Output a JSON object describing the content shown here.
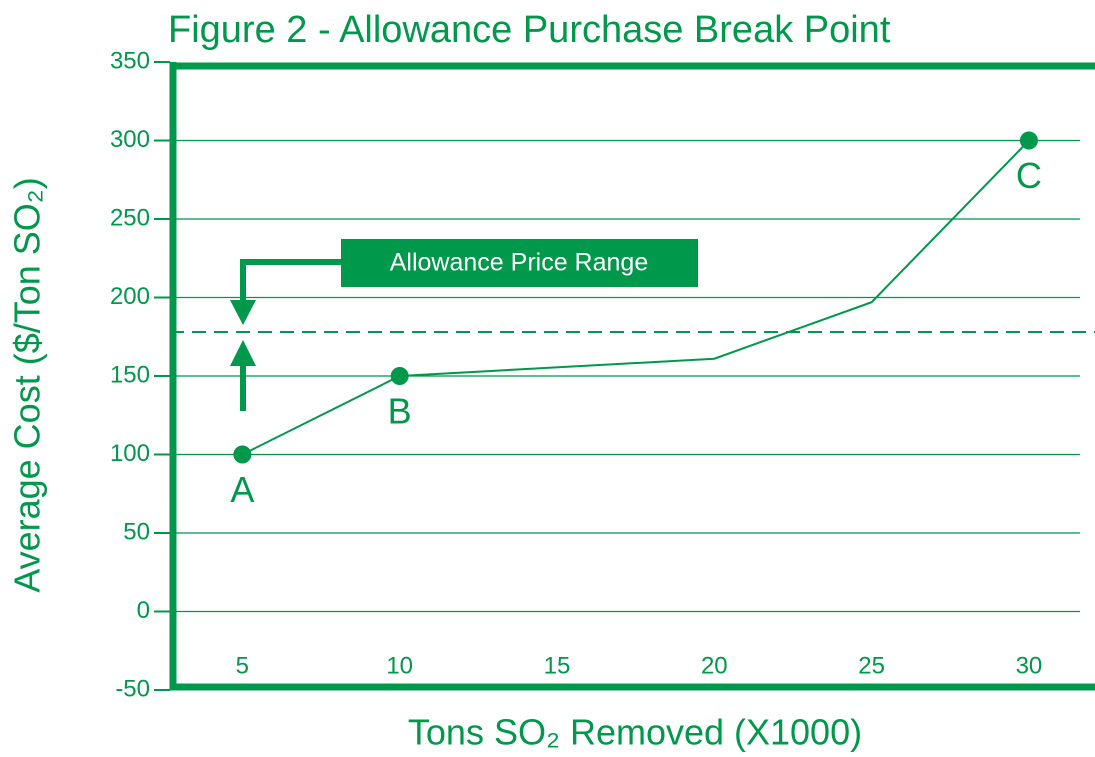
{
  "chart_data": {
    "type": "line",
    "title": "Figure 2 - Allowance Purchase Break Point",
    "xlabel": "Tons SO₂ Removed (X1000)",
    "ylabel": "Average Cost ($/Ton SO₂)",
    "x": [
      5,
      10,
      20,
      25,
      30
    ],
    "series": [
      {
        "name": "Average Cost",
        "color": "#00984a",
        "values": [
          100,
          150,
          161,
          197,
          300
        ]
      }
    ],
    "point_labels": [
      "A",
      "B",
      null,
      null,
      "C"
    ],
    "reference_line": 178,
    "annotation": "Allowance Price Range",
    "xlim": [
      2.7,
      32.1
    ],
    "ylim": [
      -50,
      350
    ],
    "xticks": [
      5,
      10,
      15,
      20,
      25,
      30
    ],
    "yticks": [
      -50,
      0,
      50,
      100,
      150,
      200,
      250,
      300,
      350
    ],
    "grid": true
  }
}
